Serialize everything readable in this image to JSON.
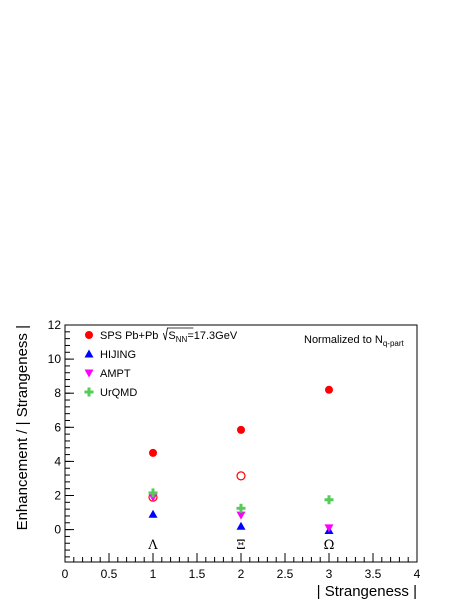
{
  "chart_data": {
    "type": "scatter",
    "xlabel": "| Strangeness |",
    "ylabel": "Enhancement / | Strangeness |",
    "xlim": [
      0,
      4
    ],
    "ylim": [
      -1.9,
      12
    ],
    "x_ticks": [
      "0",
      "0.5",
      "1",
      "1.5",
      "2",
      "2.5",
      "3",
      "3.5",
      "4"
    ],
    "y_ticks": [
      "0",
      "2",
      "4",
      "6",
      "8",
      "10",
      "12"
    ],
    "annotation": {
      "prefix": "Normalized to N",
      "subscript": "q-part"
    },
    "particle_labels": [
      {
        "x": 1,
        "label": "Λ"
      },
      {
        "x": 2,
        "label": "Ξ"
      },
      {
        "x": 3,
        "label": "Ω"
      }
    ],
    "series": [
      {
        "name": "SPS Pb+Pb",
        "legend_suffix": "=17.3GeV",
        "legend_sqrt": "S",
        "legend_sub": "NN",
        "marker": "filled-circle",
        "color": "#ff0000",
        "points": [
          {
            "x": 1,
            "y": 4.5
          },
          {
            "x": 2,
            "y": 5.85
          },
          {
            "x": 3,
            "y": 8.2
          }
        ]
      },
      {
        "name": "",
        "marker": "open-circle",
        "color": "#ff0000",
        "points": [
          {
            "x": 1,
            "y": 1.9
          },
          {
            "x": 2,
            "y": 3.15
          }
        ]
      },
      {
        "name": "HIJING",
        "marker": "triangle-up",
        "color": "#0000ff",
        "points": [
          {
            "x": 1,
            "y": 0.9
          },
          {
            "x": 2,
            "y": 0.2
          },
          {
            "x": 3,
            "y": -0.05
          }
        ]
      },
      {
        "name": "AMPT",
        "marker": "triangle-down",
        "color": "#ff00ff",
        "points": [
          {
            "x": 1,
            "y": 1.9
          },
          {
            "x": 2,
            "y": 0.85
          },
          {
            "x": 3,
            "y": 0.1
          }
        ]
      },
      {
        "name": "UrQMD",
        "marker": "plus",
        "color": "#55cc55",
        "points": [
          {
            "x": 1,
            "y": 2.15
          },
          {
            "x": 2,
            "y": 1.25
          },
          {
            "x": 3,
            "y": 1.75
          }
        ]
      }
    ]
  }
}
